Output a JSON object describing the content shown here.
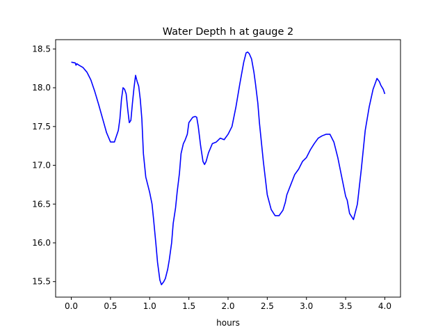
{
  "chart_data": {
    "type": "line",
    "title": "Water Depth h at gauge 2",
    "xlabel": "hours",
    "ylabel": "",
    "xlim": [
      -0.2,
      4.2
    ],
    "ylim": [
      15.3,
      18.62
    ],
    "xticks": [
      0.0,
      0.5,
      1.0,
      1.5,
      2.0,
      2.5,
      3.0,
      3.5,
      4.0
    ],
    "xtick_labels": [
      "0.0",
      "0.5",
      "1.0",
      "1.5",
      "2.0",
      "2.5",
      "3.0",
      "3.5",
      "4.0"
    ],
    "yticks": [
      15.5,
      16.0,
      16.5,
      17.0,
      17.5,
      18.0,
      18.5
    ],
    "ytick_labels": [
      "15.5",
      "16.0",
      "16.5",
      "17.0",
      "17.5",
      "18.0",
      "18.5"
    ],
    "grid": false,
    "series": [
      {
        "color": "#0000ff",
        "x": [
          0.0,
          0.05,
          0.06,
          0.07,
          0.1,
          0.15,
          0.2,
          0.25,
          0.3,
          0.35,
          0.4,
          0.45,
          0.5,
          0.55,
          0.6,
          0.62,
          0.64,
          0.66,
          0.68,
          0.7,
          0.72,
          0.74,
          0.76,
          0.78,
          0.8,
          0.82,
          0.84,
          0.86,
          0.88,
          0.9,
          0.92,
          0.95,
          1.0,
          1.03,
          1.05,
          1.08,
          1.1,
          1.13,
          1.15,
          1.18,
          1.2,
          1.23,
          1.25,
          1.28,
          1.3,
          1.33,
          1.35,
          1.38,
          1.4,
          1.43,
          1.45,
          1.48,
          1.5,
          1.55,
          1.58,
          1.6,
          1.62,
          1.65,
          1.68,
          1.7,
          1.72,
          1.75,
          1.8,
          1.85,
          1.9,
          1.95,
          2.0,
          2.05,
          2.1,
          2.15,
          2.2,
          2.23,
          2.25,
          2.27,
          2.3,
          2.33,
          2.35,
          2.38,
          2.4,
          2.45,
          2.5,
          2.55,
          2.6,
          2.65,
          2.7,
          2.73,
          2.75,
          2.8,
          2.85,
          2.9,
          2.95,
          3.0,
          3.05,
          3.1,
          3.15,
          3.2,
          3.25,
          3.3,
          3.35,
          3.4,
          3.45,
          3.48,
          3.5,
          3.52,
          3.55,
          3.6,
          3.65,
          3.7,
          3.75,
          3.8,
          3.85,
          3.9,
          3.93,
          3.95,
          3.98,
          4.0
        ],
        "y": [
          18.33,
          18.32,
          18.29,
          18.31,
          18.29,
          18.26,
          18.2,
          18.1,
          17.95,
          17.78,
          17.6,
          17.42,
          17.3,
          17.3,
          17.45,
          17.6,
          17.85,
          18.0,
          17.98,
          17.92,
          17.72,
          17.55,
          17.58,
          17.8,
          18.0,
          18.16,
          18.08,
          18.02,
          17.85,
          17.6,
          17.15,
          16.85,
          16.65,
          16.5,
          16.3,
          15.98,
          15.75,
          15.52,
          15.46,
          15.5,
          15.54,
          15.66,
          15.78,
          16.0,
          16.25,
          16.45,
          16.65,
          16.9,
          17.15,
          17.28,
          17.32,
          17.4,
          17.55,
          17.62,
          17.63,
          17.62,
          17.5,
          17.25,
          17.05,
          17.01,
          17.05,
          17.16,
          17.28,
          17.3,
          17.35,
          17.33,
          17.4,
          17.5,
          17.75,
          18.05,
          18.33,
          18.45,
          18.46,
          18.44,
          18.37,
          18.2,
          18.05,
          17.8,
          17.55,
          17.05,
          16.62,
          16.43,
          16.35,
          16.35,
          16.42,
          16.52,
          16.62,
          16.75,
          16.88,
          16.95,
          17.05,
          17.1,
          17.2,
          17.28,
          17.35,
          17.38,
          17.4,
          17.4,
          17.3,
          17.1,
          16.85,
          16.7,
          16.6,
          16.55,
          16.38,
          16.3,
          16.5,
          16.95,
          17.45,
          17.75,
          17.98,
          18.12,
          18.08,
          18.03,
          17.98,
          17.92
        ]
      }
    ]
  }
}
